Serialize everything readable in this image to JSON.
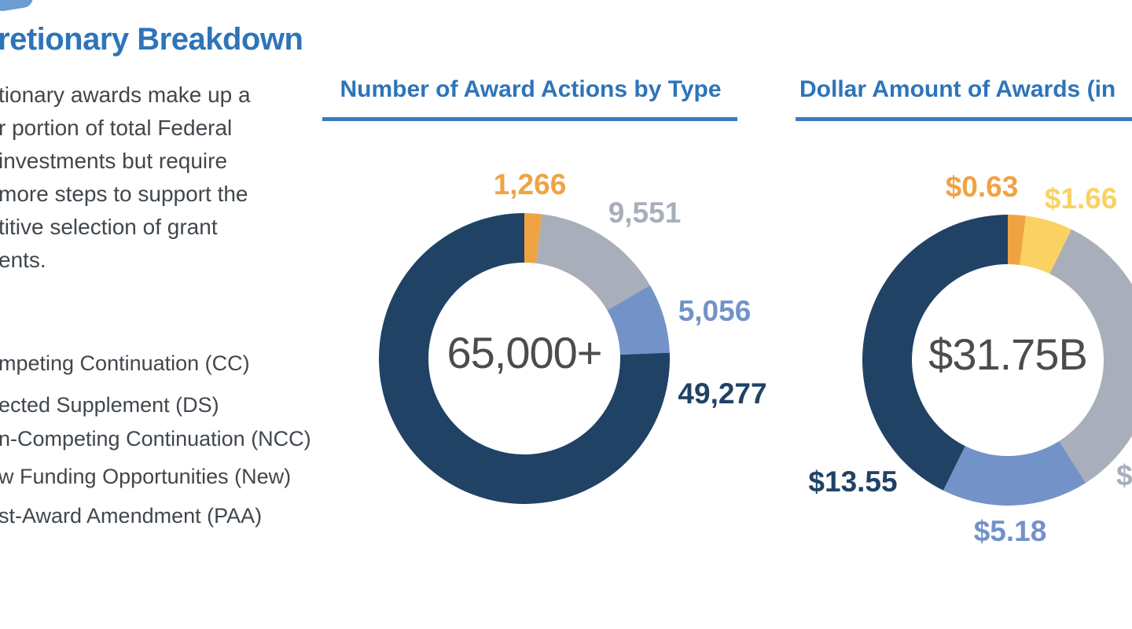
{
  "header": {
    "title": "retionary Breakdown"
  },
  "intro": {
    "lines": [
      "tionary awards make up a",
      "r portion of total Federal",
      "investments but require",
      "more steps to support the",
      "titive selection of grant",
      "ents."
    ]
  },
  "legend": {
    "items": [
      "mpeting Continuation (CC)",
      "ected Supplement (DS)",
      "n-Competing Continuation (NCC)",
      "w Funding Opportunities (New)",
      "st-Award Amendment (PAA)"
    ]
  },
  "colors": {
    "heading_blue": "#2e74b9",
    "underline_blue": "#3b7abf",
    "body_text": "#40474d",
    "center_text": "#4c4c4e",
    "navy": "#204265",
    "orange": "#f0a342",
    "gray": "#a8aeba",
    "light_blue": "#7392c8",
    "yellow": "#f9d263"
  },
  "chart_data": [
    {
      "type": "pie",
      "variant": "donut",
      "title": "Number of Award Actions by Type",
      "center_label": "65,000+",
      "start": "12-oclock",
      "direction": "clockwise",
      "segments": [
        {
          "label": "1,266",
          "value": 1266,
          "color": "#f0a342"
        },
        {
          "label": "9,551",
          "value": 9551,
          "color": "#a8aeba"
        },
        {
          "label": "5,056",
          "value": 5056,
          "color": "#7392c8"
        },
        {
          "label": "49,277",
          "value": 49277,
          "color": "#204265"
        }
      ]
    },
    {
      "type": "pie",
      "variant": "donut",
      "title": "Dollar Amount of Awards (in",
      "center_label": "$31.75B",
      "start": "12-oclock",
      "direction": "clockwise",
      "segments": [
        {
          "label": "$0.63",
          "value": 0.63,
          "color": "#f0a342"
        },
        {
          "label": "$1.66",
          "value": 1.66,
          "color": "#f9d263"
        },
        {
          "label": "$",
          "value": 10.73,
          "color": "#a8aeba",
          "label_clipped": true
        },
        {
          "label": "$5.18",
          "value": 5.18,
          "color": "#7392c8"
        },
        {
          "label": "$13.55",
          "value": 13.55,
          "color": "#204265"
        }
      ]
    }
  ]
}
